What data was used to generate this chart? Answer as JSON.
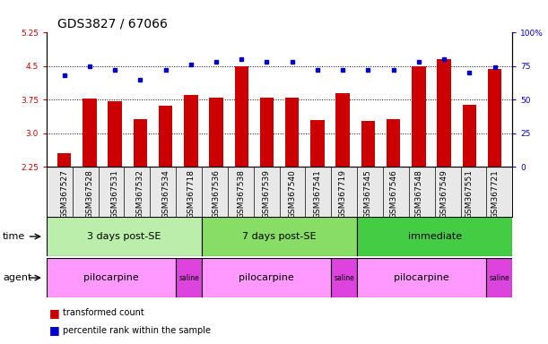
{
  "title": "GDS3827 / 67066",
  "samples": [
    "GSM367527",
    "GSM367528",
    "GSM367531",
    "GSM367532",
    "GSM367534",
    "GSM367718",
    "GSM367536",
    "GSM367538",
    "GSM367539",
    "GSM367540",
    "GSM367541",
    "GSM367719",
    "GSM367545",
    "GSM367546",
    "GSM367548",
    "GSM367549",
    "GSM367551",
    "GSM367721"
  ],
  "bar_values": [
    2.55,
    3.77,
    3.71,
    3.32,
    3.62,
    3.86,
    3.8,
    4.5,
    3.8,
    3.8,
    3.3,
    3.9,
    3.28,
    3.31,
    4.5,
    4.65,
    3.63,
    4.44
  ],
  "dot_values": [
    68,
    75,
    72,
    65,
    72,
    76,
    78,
    80,
    78,
    78,
    72,
    72,
    72,
    72,
    78,
    80,
    70,
    74
  ],
  "ylim_left": [
    2.25,
    5.25
  ],
  "ylim_right": [
    0,
    100
  ],
  "yticks_left": [
    2.25,
    3.0,
    3.75,
    4.5,
    5.25
  ],
  "yticks_right": [
    0,
    25,
    50,
    75,
    100
  ],
  "bar_color": "#CC0000",
  "dot_color": "#0000CC",
  "time_group_boundaries": [
    0,
    6,
    12,
    18
  ],
  "time_group_labels": [
    "3 days post-SE",
    "7 days post-SE",
    "immediate"
  ],
  "time_group_colors": [
    "#BBEEAA",
    "#88DD66",
    "#44CC44"
  ],
  "agent_segs": [
    [
      0,
      5,
      "pilocarpine",
      "#FF99FF"
    ],
    [
      5,
      6,
      "saline",
      "#DD44DD"
    ],
    [
      6,
      11,
      "pilocarpine",
      "#FF99FF"
    ],
    [
      11,
      12,
      "saline",
      "#DD44DD"
    ],
    [
      12,
      17,
      "pilocarpine",
      "#FF99FF"
    ],
    [
      17,
      18,
      "saline",
      "#DD44DD"
    ]
  ],
  "time_label": "time",
  "agent_label": "agent",
  "legend_bar": "transformed count",
  "legend_dot": "percentile rank within the sample",
  "title_fontsize": 10,
  "tick_fontsize": 6.5,
  "row_label_fontsize": 8,
  "row_text_fontsize": 8
}
